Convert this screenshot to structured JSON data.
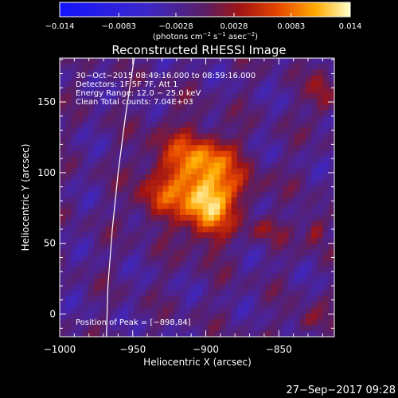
{
  "chart_data": {
    "type": "heatmap",
    "title": "Reconstructed RHESSI Image",
    "xlabel": "Heliocentric X (arcsec)",
    "ylabel": "Heliocentric Y (arcsec)",
    "xlim": [
      -1000,
      -812
    ],
    "ylim": [
      -16,
      181
    ],
    "x_ticks": [
      -1000,
      -950,
      -900,
      -850
    ],
    "x_tick_labels": [
      "−1000",
      "−950",
      "−900",
      "−850"
    ],
    "y_ticks": [
      0,
      50,
      100,
      150
    ],
    "y_tick_labels": [
      "0",
      "50",
      "100",
      "150"
    ],
    "colorbar": {
      "range": [
        -0.014,
        0.014
      ],
      "ticks": [
        -0.014,
        -0.0083,
        -0.0028,
        0.0028,
        0.0083,
        0.014
      ],
      "tick_labels": [
        "−0.014",
        "−0.0083",
        "−0.0028",
        "0.0028",
        "0.0083",
        "0.014"
      ],
      "unit_text": "(photons cm",
      "unit_exp1": "−2",
      "unit_mid": " s",
      "unit_exp2": "−1",
      "unit_mid2": " asec",
      "unit_exp3": "−2",
      "unit_close": ")"
    },
    "annotations": [
      "30−Oct−2015 08:49:16.000 to 08:59:16.000",
      "Detectors: 1F 5F 7F, Att 1",
      "Energy Range: 12.0 − 25.0 keV",
      "Clean     Total counts: 7.04E+03"
    ],
    "peak_label": "Position of Peak = [−898,84]",
    "peak": {
      "x": -898,
      "y": 84
    },
    "sources": [
      {
        "x": -898,
        "y": 78,
        "sx": 11,
        "sy": 18,
        "amp": 0.0125
      },
      {
        "x": -918,
        "y": 100,
        "sx": 16,
        "sy": 22,
        "amp": 0.0075
      },
      {
        "x": -895,
        "y": 112,
        "sx": 13,
        "sy": 10,
        "amp": 0.006
      },
      {
        "x": -878,
        "y": 90,
        "sx": 14,
        "sy": 10,
        "amp": 0.004
      },
      {
        "x": -935,
        "y": 80,
        "sx": 10,
        "sy": 10,
        "amp": 0.004
      },
      {
        "x": -860,
        "y": 60,
        "sx": 8,
        "sy": 6,
        "amp": 0.004
      },
      {
        "x": -825,
        "y": 60,
        "sx": 5,
        "sy": 8,
        "amp": 0.006
      },
      {
        "x": -820,
        "y": 155,
        "sx": 6,
        "sy": 12,
        "amp": 0.005
      },
      {
        "x": -830,
        "y": -5,
        "sx": 8,
        "sy": 6,
        "amp": 0.004
      }
    ],
    "limb_curve": [
      [
        -968,
        -16
      ],
      [
        -967,
        20
      ],
      [
        -964,
        60
      ],
      [
        -960,
        100
      ],
      [
        -955,
        140
      ],
      [
        -949,
        181
      ]
    ]
  },
  "timestamp": "27−Sep−2017 09:28"
}
